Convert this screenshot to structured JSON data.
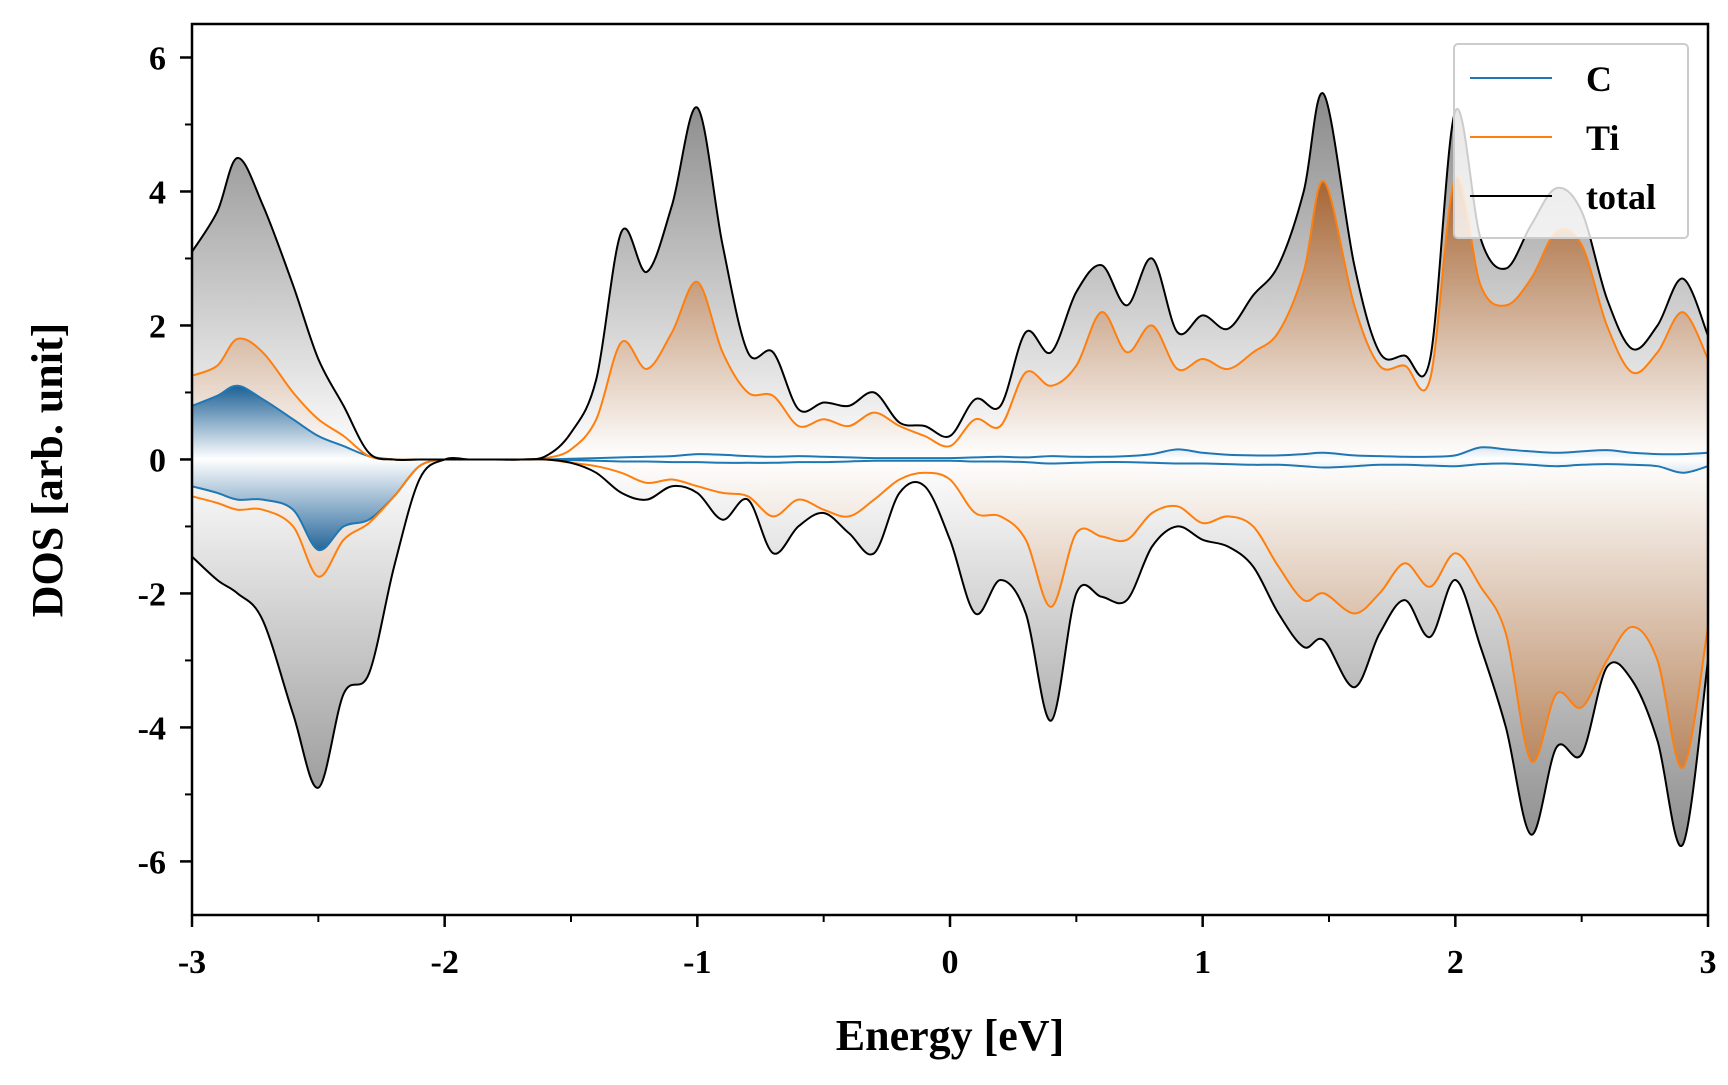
{
  "chart_data": {
    "type": "line",
    "title": "",
    "xlabel": "Energy [eV]",
    "ylabel": "DOS [arb. unit]",
    "xlim": [
      -3,
      3
    ],
    "ylim": [
      -6.8,
      6.5
    ],
    "xticks": [
      -3,
      -2,
      -1,
      0,
      1,
      2,
      3
    ],
    "xtick_labels": [
      "-3",
      "-2",
      "-1",
      "0",
      "1",
      "2",
      "3"
    ],
    "yticks": [
      -6,
      -4,
      -2,
      0,
      2,
      4,
      6
    ],
    "ytick_labels": [
      "-6",
      "-4",
      "-2",
      "0",
      "2",
      "4",
      "6"
    ],
    "grid": false,
    "legend_position": "top-right",
    "colors": {
      "C": "#1f77b4",
      "Ti": "#ff7f0e",
      "total": "#000000"
    },
    "x": [
      -3.0,
      -2.9,
      -2.82,
      -2.72,
      -2.6,
      -2.5,
      -2.4,
      -2.3,
      -2.2,
      -2.1,
      -2.0,
      -1.9,
      -1.8,
      -1.7,
      -1.6,
      -1.5,
      -1.4,
      -1.3,
      -1.2,
      -1.1,
      -1.0,
      -0.9,
      -0.8,
      -0.7,
      -0.6,
      -0.5,
      -0.4,
      -0.3,
      -0.2,
      -0.1,
      0.0,
      0.1,
      0.2,
      0.3,
      0.4,
      0.5,
      0.6,
      0.7,
      0.8,
      0.9,
      1.0,
      1.1,
      1.2,
      1.3,
      1.4,
      1.48,
      1.6,
      1.7,
      1.8,
      1.9,
      2.0,
      2.1,
      2.2,
      2.3,
      2.4,
      2.5,
      2.6,
      2.7,
      2.8,
      2.9,
      3.0
    ],
    "series": [
      {
        "name": "C",
        "up": [
          0.8,
          0.95,
          1.1,
          0.9,
          0.6,
          0.35,
          0.2,
          0.05,
          0.0,
          0.0,
          0.0,
          0.0,
          0.0,
          0.0,
          0.0,
          0.01,
          0.02,
          0.03,
          0.04,
          0.05,
          0.08,
          0.07,
          0.05,
          0.04,
          0.05,
          0.04,
          0.03,
          0.02,
          0.02,
          0.02,
          0.02,
          0.03,
          0.04,
          0.03,
          0.05,
          0.04,
          0.04,
          0.05,
          0.08,
          0.15,
          0.1,
          0.07,
          0.06,
          0.06,
          0.08,
          0.1,
          0.06,
          0.05,
          0.04,
          0.04,
          0.06,
          0.18,
          0.15,
          0.12,
          0.1,
          0.12,
          0.14,
          0.1,
          0.08,
          0.08,
          0.1
        ],
        "down": [
          -0.4,
          -0.5,
          -0.6,
          -0.6,
          -0.75,
          -1.35,
          -1.0,
          -0.9,
          -0.55,
          -0.1,
          0.0,
          0.0,
          0.0,
          0.0,
          0.0,
          -0.01,
          -0.02,
          -0.03,
          -0.03,
          -0.04,
          -0.04,
          -0.05,
          -0.05,
          -0.05,
          -0.04,
          -0.04,
          -0.03,
          -0.02,
          -0.02,
          -0.02,
          -0.02,
          -0.03,
          -0.03,
          -0.04,
          -0.06,
          -0.05,
          -0.04,
          -0.04,
          -0.05,
          -0.06,
          -0.06,
          -0.07,
          -0.08,
          -0.08,
          -0.1,
          -0.12,
          -0.1,
          -0.08,
          -0.08,
          -0.09,
          -0.1,
          -0.07,
          -0.06,
          -0.08,
          -0.1,
          -0.08,
          -0.07,
          -0.08,
          -0.1,
          -0.2,
          -0.1
        ]
      },
      {
        "name": "Ti",
        "up": [
          1.25,
          1.4,
          1.8,
          1.6,
          1.0,
          0.6,
          0.35,
          0.05,
          0.0,
          0.0,
          0.0,
          0.0,
          0.0,
          0.0,
          0.02,
          0.15,
          0.6,
          1.75,
          1.35,
          1.9,
          2.65,
          1.6,
          1.0,
          0.95,
          0.5,
          0.6,
          0.5,
          0.7,
          0.5,
          0.35,
          0.2,
          0.6,
          0.5,
          1.3,
          1.1,
          1.4,
          2.2,
          1.6,
          2.0,
          1.35,
          1.5,
          1.35,
          1.6,
          1.9,
          2.8,
          4.15,
          2.3,
          1.4,
          1.4,
          1.2,
          4.2,
          2.6,
          2.3,
          2.7,
          3.4,
          3.2,
          2.0,
          1.3,
          1.6,
          2.2,
          1.5
        ],
        "down": [
          -0.55,
          -0.65,
          -0.75,
          -0.75,
          -1.0,
          -1.75,
          -1.2,
          -0.95,
          -0.55,
          -0.1,
          0.0,
          0.0,
          0.0,
          0.0,
          0.0,
          -0.05,
          -0.1,
          -0.2,
          -0.35,
          -0.3,
          -0.4,
          -0.5,
          -0.55,
          -0.85,
          -0.6,
          -0.75,
          -0.85,
          -0.6,
          -0.3,
          -0.2,
          -0.3,
          -0.8,
          -0.85,
          -1.2,
          -2.2,
          -1.1,
          -1.15,
          -1.2,
          -0.8,
          -0.7,
          -0.95,
          -0.85,
          -1.0,
          -1.6,
          -2.1,
          -2.0,
          -2.3,
          -2.0,
          -1.55,
          -1.9,
          -1.4,
          -1.9,
          -2.6,
          -4.5,
          -3.5,
          -3.7,
          -3.0,
          -2.5,
          -3.0,
          -4.6,
          -2.5
        ]
      },
      {
        "name": "total",
        "up": [
          3.1,
          3.7,
          4.5,
          3.8,
          2.6,
          1.5,
          0.8,
          0.1,
          0.0,
          0.0,
          0.0,
          0.0,
          0.0,
          0.0,
          0.05,
          0.4,
          1.2,
          3.4,
          2.8,
          3.8,
          5.25,
          3.2,
          1.6,
          1.6,
          0.75,
          0.85,
          0.8,
          1.0,
          0.55,
          0.5,
          0.35,
          0.9,
          0.8,
          1.9,
          1.6,
          2.5,
          2.9,
          2.3,
          3.0,
          1.9,
          2.15,
          1.95,
          2.45,
          2.9,
          4.0,
          5.45,
          2.9,
          1.6,
          1.55,
          1.5,
          5.2,
          3.3,
          2.85,
          3.5,
          4.05,
          3.7,
          2.4,
          1.65,
          2.0,
          2.7,
          1.85
        ],
        "down": [
          -1.45,
          -1.8,
          -2.0,
          -2.4,
          -3.8,
          -4.9,
          -3.5,
          -3.2,
          -1.6,
          -0.3,
          0.0,
          0.0,
          0.0,
          0.0,
          0.0,
          -0.05,
          -0.2,
          -0.5,
          -0.6,
          -0.4,
          -0.5,
          -0.9,
          -0.6,
          -1.4,
          -1.0,
          -0.8,
          -1.1,
          -1.4,
          -0.5,
          -0.4,
          -1.2,
          -2.3,
          -1.8,
          -2.3,
          -3.9,
          -2.0,
          -2.05,
          -2.1,
          -1.3,
          -1.0,
          -1.2,
          -1.3,
          -1.6,
          -2.3,
          -2.8,
          -2.7,
          -3.4,
          -2.6,
          -2.1,
          -2.65,
          -1.8,
          -2.8,
          -4.0,
          -5.6,
          -4.3,
          -4.4,
          -3.1,
          -3.3,
          -4.2,
          -5.75,
          -3.0
        ]
      }
    ]
  }
}
